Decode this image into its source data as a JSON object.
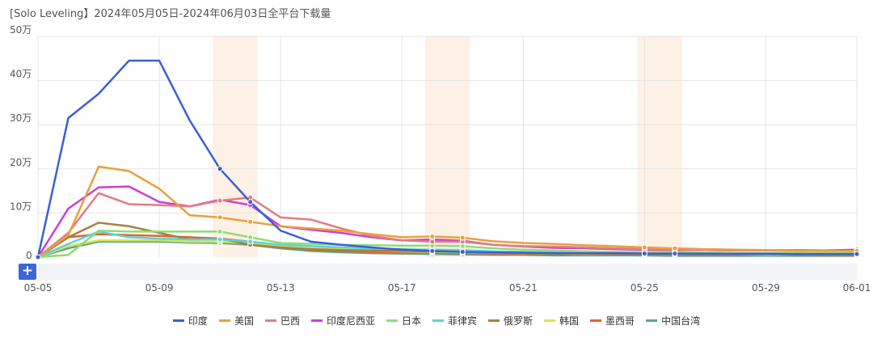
{
  "title": "[Solo Leveling】2024年05月05日-2024年06月03日全平台下载量",
  "chart_data": {
    "type": "line",
    "title": "[Solo Leveling】2024年05月05日-2024年06月03日全平台下载量",
    "x": [
      "05-05",
      "05-06",
      "05-07",
      "05-08",
      "05-09",
      "05-10",
      "05-11",
      "05-12",
      "05-13",
      "05-14",
      "05-15",
      "05-16",
      "05-17",
      "05-18",
      "05-19",
      "05-20",
      "05-21",
      "05-22",
      "05-23",
      "05-24",
      "05-25",
      "05-26",
      "05-27",
      "05-28",
      "05-29",
      "05-30",
      "05-31",
      "06-01"
    ],
    "x_tick_labels": [
      "05-05",
      "05-09",
      "05-13",
      "05-17",
      "05-21",
      "05-25",
      "05-29",
      "06-01"
    ],
    "y_tick_labels": [
      "0",
      "10万",
      "20万",
      "30万",
      "40万",
      "50万"
    ],
    "ylim": [
      0,
      500000
    ],
    "grid": true,
    "legend_position": "bottom",
    "highlight_bands": [
      [
        "05-11",
        "05-12"
      ],
      [
        "05-18",
        "05-19"
      ],
      [
        "05-25",
        "05-26"
      ]
    ],
    "series": [
      {
        "name": "印度",
        "color": "#3b5fd4",
        "values": [
          0,
          315000,
          370000,
          445000,
          445000,
          310000,
          200000,
          125000,
          60000,
          35000,
          28000,
          22000,
          17000,
          14000,
          12000,
          11000,
          10000,
          9000,
          9000,
          9000,
          8000,
          8000,
          8000,
          8000,
          8000,
          7000,
          7000,
          7000
        ]
      },
      {
        "name": "美国",
        "color": "#e8a13c",
        "values": [
          0,
          50000,
          205000,
          195000,
          155000,
          95000,
          90000,
          80000,
          70000,
          65000,
          60000,
          52000,
          45000,
          47000,
          44000,
          36000,
          32000,
          30000,
          27000,
          25000,
          22000,
          20000,
          18000,
          17000,
          16000,
          15000,
          14000,
          14000
        ]
      },
      {
        "name": "巴西",
        "color": "#e37d7d",
        "values": [
          0,
          55000,
          145000,
          120000,
          118000,
          115000,
          128000,
          135000,
          90000,
          85000,
          65000,
          48000,
          38000,
          35000,
          35000,
          28000,
          25000,
          24000,
          22000,
          20000,
          18000,
          17000,
          16000,
          15000,
          15000,
          14000,
          14000,
          14000
        ]
      },
      {
        "name": "印度尼西亚",
        "color": "#cc3fd6",
        "values": [
          0,
          110000,
          158000,
          160000,
          125000,
          115000,
          130000,
          118000,
          70000,
          62000,
          55000,
          45000,
          38000,
          40000,
          37000,
          28000,
          24000,
          21000,
          20000,
          18000,
          17000,
          16000,
          16000,
          15000,
          15000,
          16000,
          15000,
          17000
        ]
      },
      {
        "name": "日本",
        "color": "#8fdc75",
        "values": [
          0,
          5000,
          60000,
          58000,
          58000,
          58000,
          58000,
          45000,
          32000,
          30000,
          28000,
          27000,
          26000,
          26000,
          25000,
          20000,
          17000,
          15000,
          13000,
          12000,
          12000,
          11000,
          10000,
          9000,
          9000,
          9000,
          9000,
          9000
        ]
      },
      {
        "name": "菲律宾",
        "color": "#5fcfe0",
        "values": [
          0,
          30000,
          58000,
          45000,
          42000,
          40000,
          40000,
          35000,
          28000,
          25000,
          22000,
          20000,
          18000,
          17000,
          16000,
          13000,
          12000,
          11000,
          10000,
          9000,
          9000,
          8000,
          8000,
          8000,
          7000,
          7000,
          7000,
          7000
        ]
      },
      {
        "name": "俄罗斯",
        "color": "#a8803b",
        "values": [
          0,
          45000,
          78000,
          70000,
          55000,
          40000,
          42000,
          28000,
          22000,
          18000,
          16000,
          15000,
          14000,
          13000,
          12000,
          10000,
          9000,
          8000,
          8000,
          7000,
          7000,
          6000,
          6000,
          6000,
          6000,
          5000,
          5000,
          5000
        ]
      },
      {
        "name": "韩国",
        "color": "#d7e64a",
        "values": [
          0,
          25000,
          38000,
          38000,
          38000,
          35000,
          35000,
          32000,
          25000,
          20000,
          18000,
          15000,
          13000,
          12000,
          11000,
          10000,
          9000,
          8000,
          7000,
          7000,
          7000,
          6000,
          6000,
          6000,
          5000,
          5000,
          5000,
          5000
        ]
      },
      {
        "name": "墨西哥",
        "color": "#e2632c",
        "values": [
          0,
          45000,
          52000,
          50000,
          48000,
          45000,
          42000,
          35000,
          22000,
          17000,
          14000,
          12000,
          11000,
          10000,
          9000,
          8000,
          7000,
          7000,
          6000,
          6000,
          6000,
          5000,
          5000,
          5000,
          5000,
          5000,
          4000,
          4000
        ]
      },
      {
        "name": "中国台湾",
        "color": "#5aa58f",
        "values": [
          0,
          20000,
          35000,
          35000,
          35000,
          33000,
          32000,
          28000,
          20000,
          14000,
          11000,
          9000,
          8000,
          7000,
          6000,
          5000,
          5000,
          4000,
          4000,
          4000,
          4000,
          3000,
          3000,
          3000,
          3000,
          3000,
          3000,
          3000
        ]
      }
    ]
  },
  "colors": {
    "grid": "#e4e4e4",
    "band": "#fdf0e4",
    "axis_text": "#555555",
    "zoom_button": "#3b66d6",
    "zoom_track": "#f1f3f7"
  },
  "zoom_button_icon": "plus-icon"
}
